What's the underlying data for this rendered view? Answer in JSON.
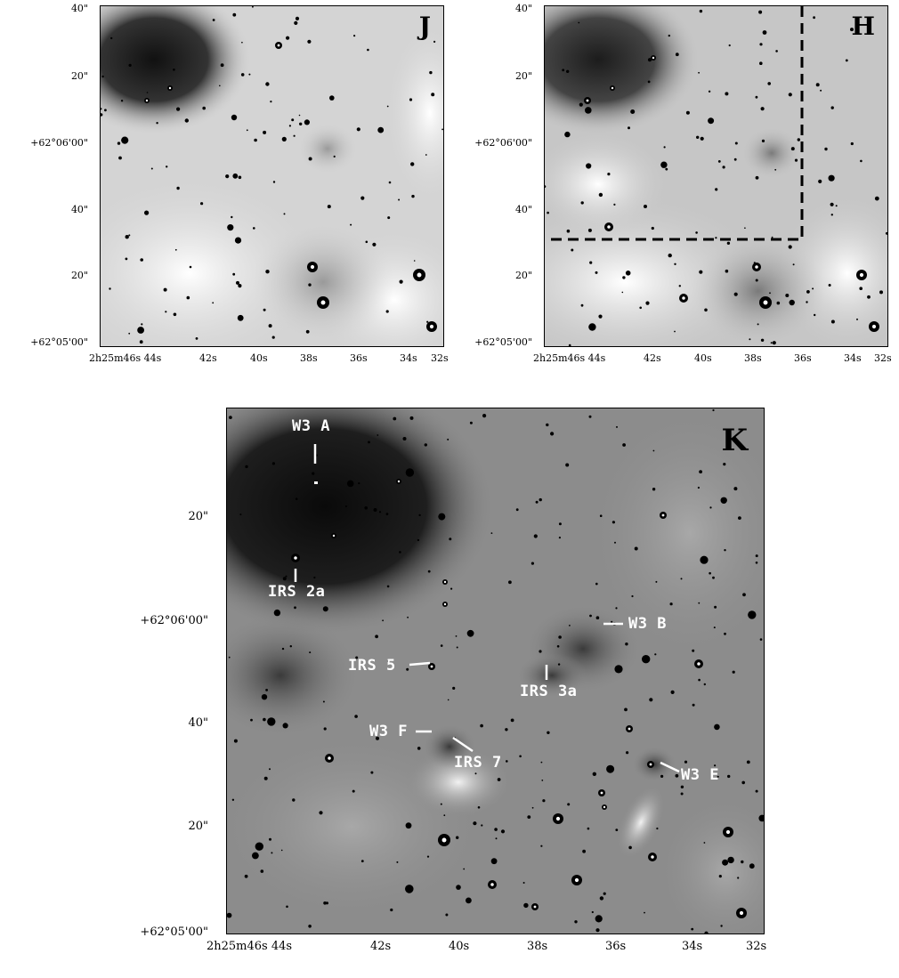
{
  "panels": {
    "j": {
      "band": "J"
    },
    "h": {
      "band": "H"
    },
    "k": {
      "band": "K"
    }
  },
  "axes": {
    "small": {
      "y_ticks": [
        "40\"",
        "20\"",
        "+62°06'00\"",
        "40\"",
        "20\"",
        "+62°05'00\""
      ],
      "x_ticks": [
        "2h25m46s 44s",
        "42s",
        "40s",
        "38s",
        "36s",
        "34s",
        "32s"
      ]
    },
    "large": {
      "y_ticks": [
        "20\"",
        "+62°06'00\"",
        "40\"",
        "20\"",
        "+62°05'00\""
      ],
      "x_ticks": [
        "2h25m46s 44s",
        "42s",
        "40s",
        "38s",
        "36s",
        "34s",
        "32s"
      ]
    }
  },
  "annotations": {
    "w3a": "W3 A",
    "irs2a": "IRS 2a",
    "w3b": "W3 B",
    "irs5": "IRS 5",
    "irs3a": "IRS 3a",
    "w3f": "W3 F",
    "irs7": "IRS 7",
    "w3e": "W3 E"
  },
  "colors": {
    "background": "#ffffff",
    "nebula_dark": "#1a1a1a",
    "sky_grey": "#d6d6d6",
    "annotation": "#ffffff"
  }
}
